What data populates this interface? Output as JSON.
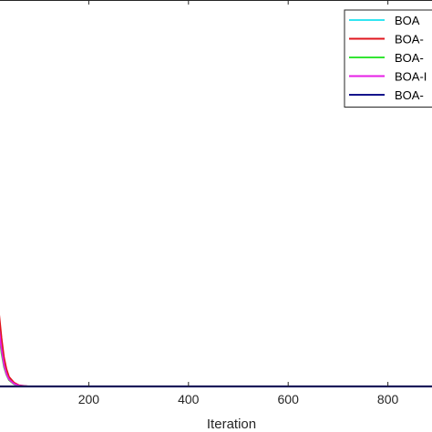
{
  "chart_data": {
    "type": "line",
    "title": "",
    "xlabel": "Iteration",
    "ylabel": "",
    "xlim": [
      0,
      1000
    ],
    "ylim": [
      0,
      100
    ],
    "x_ticks": [
      200,
      400,
      600,
      800
    ],
    "x_tick_labels": [
      "200",
      "400",
      "600",
      "800"
    ],
    "grid": false,
    "legend_position": "top-right",
    "series": [
      {
        "name": "BOA",
        "color": "#33e5f2",
        "x": [
          0,
          5,
          10,
          15,
          20,
          25,
          30,
          35,
          40,
          50,
          60,
          80,
          100,
          1000
        ],
        "y": [
          60,
          45,
          33,
          24,
          16,
          10,
          6,
          3.5,
          2,
          0.8,
          0.2,
          0,
          0,
          0
        ]
      },
      {
        "name": "BOA-",
        "color": "#e0161e",
        "x": [
          0,
          5,
          10,
          15,
          20,
          25,
          30,
          35,
          40,
          50,
          60,
          80,
          100,
          1000
        ],
        "y": [
          63,
          49,
          37,
          27,
          19,
          12.5,
          7.5,
          4.5,
          2.5,
          1,
          0.3,
          0,
          0,
          0
        ]
      },
      {
        "name": "BOA-",
        "color": "#33e533",
        "x": [
          0,
          5,
          10,
          15,
          20,
          25,
          30,
          35,
          40,
          50,
          60,
          80,
          100,
          1000
        ],
        "y": [
          57,
          42,
          30,
          21,
          14,
          8.5,
          5,
          3,
          1.6,
          0.6,
          0.15,
          0,
          0,
          0
        ]
      },
      {
        "name": "BOA-I",
        "color": "#e61ee6",
        "x": [
          0,
          5,
          10,
          15,
          20,
          25,
          30,
          35,
          40,
          50,
          60,
          80,
          100,
          1000
        ],
        "y": [
          59,
          44,
          32,
          23,
          15,
          9.5,
          5.5,
          3.2,
          1.8,
          0.7,
          0.2,
          0,
          0,
          0
        ]
      },
      {
        "name": "BOA-",
        "color": "#14148c",
        "x": [
          0,
          1000
        ],
        "y": [
          0,
          0
        ]
      }
    ]
  }
}
